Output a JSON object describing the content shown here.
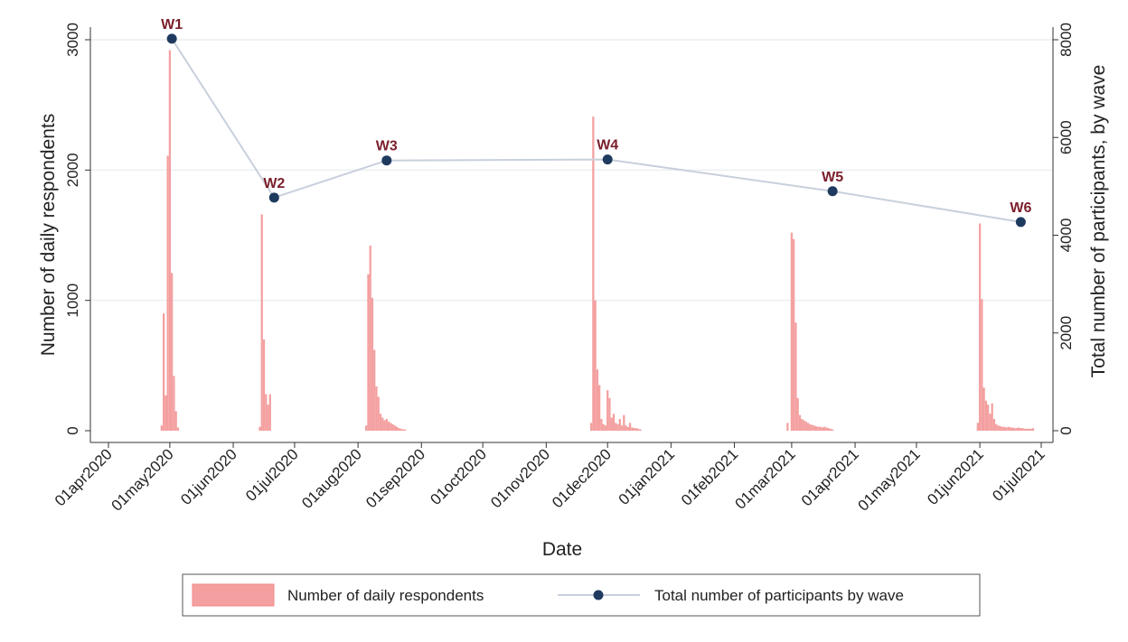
{
  "chart_data": {
    "type": "bar+line",
    "xlabel": "Date",
    "ylabel_left": "Number of daily respondents",
    "ylabel_right": "Total number of participants, by wave",
    "ylim_left": [
      0,
      3000
    ],
    "yticks_left": [
      0,
      1000,
      2000,
      3000
    ],
    "ylim_right": [
      0,
      8000
    ],
    "yticks_right": [
      0,
      2000,
      4000,
      6000,
      8000
    ],
    "xlim": [
      "2020-04-01",
      "2021-07-01"
    ],
    "xticks": [
      "01apr2020",
      "01may2020",
      "01jun2020",
      "01jul2020",
      "01aug2020",
      "01sep2020",
      "01oct2020",
      "01nov2020",
      "01dec2020",
      "01jan2021",
      "01feb2021",
      "01mar2021",
      "01apr2021",
      "01may2021",
      "01jun2021",
      "01jul2021"
    ],
    "xtick_dates": [
      "2020-04-01",
      "2020-05-01",
      "2020-06-01",
      "2020-07-01",
      "2020-08-01",
      "2020-09-01",
      "2020-10-01",
      "2020-11-01",
      "2020-12-01",
      "2021-01-01",
      "2021-02-01",
      "2021-03-01",
      "2021-04-01",
      "2021-05-01",
      "2021-06-01",
      "2021-07-01"
    ],
    "grid": true,
    "legend_position": "bottom",
    "series": [
      {
        "name": "Number of daily respondents",
        "type": "bar",
        "color": "#f4a0a0",
        "points": [
          {
            "date": "2020-04-27",
            "value": 40
          },
          {
            "date": "2020-04-28",
            "value": 900
          },
          {
            "date": "2020-04-29",
            "value": 270
          },
          {
            "date": "2020-04-30",
            "value": 2110
          },
          {
            "date": "2020-05-01",
            "value": 2920
          },
          {
            "date": "2020-05-02",
            "value": 1210
          },
          {
            "date": "2020-05-03",
            "value": 420
          },
          {
            "date": "2020-05-04",
            "value": 150
          },
          {
            "date": "2020-05-05",
            "value": 25
          },
          {
            "date": "2020-06-14",
            "value": 30
          },
          {
            "date": "2020-06-15",
            "value": 1660
          },
          {
            "date": "2020-06-16",
            "value": 700
          },
          {
            "date": "2020-06-17",
            "value": 280
          },
          {
            "date": "2020-06-18",
            "value": 200
          },
          {
            "date": "2020-06-19",
            "value": 280
          },
          {
            "date": "2020-08-05",
            "value": 40
          },
          {
            "date": "2020-08-06",
            "value": 1200
          },
          {
            "date": "2020-08-07",
            "value": 1420
          },
          {
            "date": "2020-08-08",
            "value": 1020
          },
          {
            "date": "2020-08-09",
            "value": 620
          },
          {
            "date": "2020-08-10",
            "value": 340
          },
          {
            "date": "2020-08-11",
            "value": 260
          },
          {
            "date": "2020-08-12",
            "value": 130
          },
          {
            "date": "2020-08-13",
            "value": 100
          },
          {
            "date": "2020-08-14",
            "value": 80
          },
          {
            "date": "2020-08-15",
            "value": 90
          },
          {
            "date": "2020-08-16",
            "value": 70
          },
          {
            "date": "2020-08-17",
            "value": 60
          },
          {
            "date": "2020-08-18",
            "value": 50
          },
          {
            "date": "2020-08-19",
            "value": 40
          },
          {
            "date": "2020-08-20",
            "value": 30
          },
          {
            "date": "2020-08-21",
            "value": 20
          },
          {
            "date": "2020-08-22",
            "value": 15
          },
          {
            "date": "2020-08-23",
            "value": 10
          },
          {
            "date": "2020-08-24",
            "value": 10
          },
          {
            "date": "2020-11-23",
            "value": 60
          },
          {
            "date": "2020-11-24",
            "value": 2410
          },
          {
            "date": "2020-11-25",
            "value": 1000
          },
          {
            "date": "2020-11-26",
            "value": 470
          },
          {
            "date": "2020-11-27",
            "value": 350
          },
          {
            "date": "2020-11-28",
            "value": 90
          },
          {
            "date": "2020-11-29",
            "value": 50
          },
          {
            "date": "2020-11-30",
            "value": 40
          },
          {
            "date": "2020-12-01",
            "value": 310
          },
          {
            "date": "2020-12-02",
            "value": 250
          },
          {
            "date": "2020-12-03",
            "value": 100
          },
          {
            "date": "2020-12-04",
            "value": 130
          },
          {
            "date": "2020-12-05",
            "value": 60
          },
          {
            "date": "2020-12-06",
            "value": 50
          },
          {
            "date": "2020-12-07",
            "value": 90
          },
          {
            "date": "2020-12-08",
            "value": 40
          },
          {
            "date": "2020-12-09",
            "value": 120
          },
          {
            "date": "2020-12-10",
            "value": 40
          },
          {
            "date": "2020-12-11",
            "value": 30
          },
          {
            "date": "2020-12-12",
            "value": 60
          },
          {
            "date": "2020-12-13",
            "value": 25
          },
          {
            "date": "2020-12-14",
            "value": 20
          },
          {
            "date": "2020-12-15",
            "value": 20
          },
          {
            "date": "2020-12-16",
            "value": 15
          },
          {
            "date": "2020-12-17",
            "value": 10
          },
          {
            "date": "2021-02-27",
            "value": 60
          },
          {
            "date": "2021-03-01",
            "value": 1520
          },
          {
            "date": "2021-03-02",
            "value": 1470
          },
          {
            "date": "2021-03-03",
            "value": 830
          },
          {
            "date": "2021-03-04",
            "value": 250
          },
          {
            "date": "2021-03-05",
            "value": 120
          },
          {
            "date": "2021-03-06",
            "value": 90
          },
          {
            "date": "2021-03-07",
            "value": 80
          },
          {
            "date": "2021-03-08",
            "value": 70
          },
          {
            "date": "2021-03-09",
            "value": 60
          },
          {
            "date": "2021-03-10",
            "value": 50
          },
          {
            "date": "2021-03-11",
            "value": 45
          },
          {
            "date": "2021-03-12",
            "value": 40
          },
          {
            "date": "2021-03-13",
            "value": 35
          },
          {
            "date": "2021-03-14",
            "value": 30
          },
          {
            "date": "2021-03-15",
            "value": 30
          },
          {
            "date": "2021-03-16",
            "value": 25
          },
          {
            "date": "2021-03-17",
            "value": 30
          },
          {
            "date": "2021-03-18",
            "value": 25
          },
          {
            "date": "2021-03-19",
            "value": 20
          },
          {
            "date": "2021-03-20",
            "value": 15
          },
          {
            "date": "2021-03-21",
            "value": 10
          },
          {
            "date": "2021-05-31",
            "value": 60
          },
          {
            "date": "2021-06-01",
            "value": 1590
          },
          {
            "date": "2021-06-02",
            "value": 1010
          },
          {
            "date": "2021-06-03",
            "value": 330
          },
          {
            "date": "2021-06-04",
            "value": 230
          },
          {
            "date": "2021-06-05",
            "value": 200
          },
          {
            "date": "2021-06-06",
            "value": 130
          },
          {
            "date": "2021-06-07",
            "value": 210
          },
          {
            "date": "2021-06-08",
            "value": 90
          },
          {
            "date": "2021-06-09",
            "value": 50
          },
          {
            "date": "2021-06-10",
            "value": 40
          },
          {
            "date": "2021-06-11",
            "value": 35
          },
          {
            "date": "2021-06-12",
            "value": 30
          },
          {
            "date": "2021-06-13",
            "value": 30
          },
          {
            "date": "2021-06-14",
            "value": 25
          },
          {
            "date": "2021-06-15",
            "value": 30
          },
          {
            "date": "2021-06-16",
            "value": 25
          },
          {
            "date": "2021-06-17",
            "value": 25
          },
          {
            "date": "2021-06-18",
            "value": 20
          },
          {
            "date": "2021-06-19",
            "value": 20
          },
          {
            "date": "2021-06-20",
            "value": 25
          },
          {
            "date": "2021-06-21",
            "value": 20
          },
          {
            "date": "2021-06-22",
            "value": 20
          },
          {
            "date": "2021-06-23",
            "value": 15
          },
          {
            "date": "2021-06-24",
            "value": 15
          },
          {
            "date": "2021-06-25",
            "value": 15
          },
          {
            "date": "2021-06-26",
            "value": 15
          },
          {
            "date": "2021-06-27",
            "value": 20
          }
        ]
      },
      {
        "name": "Total number of participants by wave",
        "type": "line",
        "axis": "right",
        "line_color": "#c8d0dc",
        "marker_color": "#1f3a5f",
        "points": [
          {
            "label": "W1",
            "date": "2020-05-02",
            "value": 8020
          },
          {
            "label": "W2",
            "date": "2020-06-21",
            "value": 4770
          },
          {
            "label": "W3",
            "date": "2020-08-15",
            "value": 5530
          },
          {
            "label": "W4",
            "date": "2020-12-01",
            "value": 5550
          },
          {
            "label": "W5",
            "date": "2021-03-21",
            "value": 4900
          },
          {
            "label": "W6",
            "date": "2021-06-21",
            "value": 4270
          }
        ]
      }
    ]
  }
}
